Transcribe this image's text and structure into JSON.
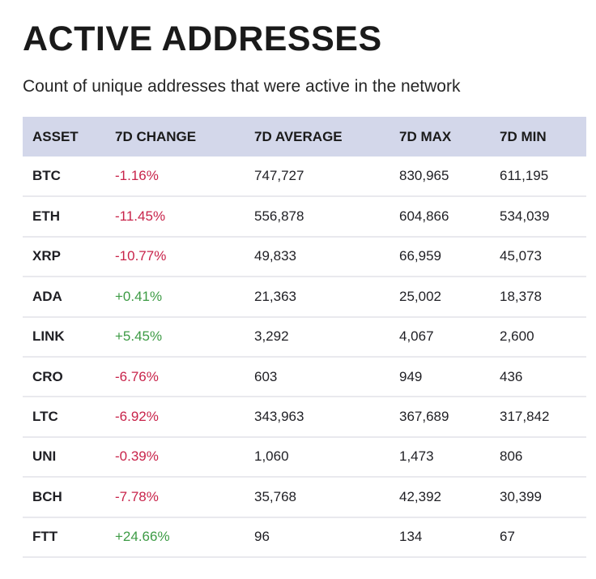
{
  "title": "ACTIVE ADDRESSES",
  "subtitle": "Count of unique addresses that were active in the network",
  "colors": {
    "header_background": "#d3d7ea",
    "negative_change": "#c8234a",
    "positive_change": "#3d9b45",
    "row_divider": "#e9e9ee"
  },
  "table": {
    "headers": [
      "ASSET",
      "7D CHANGE",
      "7D AVERAGE",
      "7D MAX",
      "7D MIN"
    ],
    "rows": [
      {
        "asset": "BTC",
        "change": "-1.16%",
        "direction": "negative",
        "average": "747,727",
        "max": "830,965",
        "min": "611,195"
      },
      {
        "asset": "ETH",
        "change": "-11.45%",
        "direction": "negative",
        "average": "556,878",
        "max": "604,866",
        "min": "534,039"
      },
      {
        "asset": "XRP",
        "change": "-10.77%",
        "direction": "negative",
        "average": "49,833",
        "max": "66,959",
        "min": "45,073"
      },
      {
        "asset": "ADA",
        "change": "+0.41%",
        "direction": "positive",
        "average": "21,363",
        "max": "25,002",
        "min": "18,378"
      },
      {
        "asset": "LINK",
        "change": "+5.45%",
        "direction": "positive",
        "average": "3,292",
        "max": "4,067",
        "min": "2,600"
      },
      {
        "asset": "CRO",
        "change": "-6.76%",
        "direction": "negative",
        "average": "603",
        "max": "949",
        "min": "436"
      },
      {
        "asset": "LTC",
        "change": "-6.92%",
        "direction": "negative",
        "average": "343,963",
        "max": "367,689",
        "min": "317,842"
      },
      {
        "asset": "UNI",
        "change": "-0.39%",
        "direction": "negative",
        "average": "1,060",
        "max": "1,473",
        "min": "806"
      },
      {
        "asset": "BCH",
        "change": "-7.78%",
        "direction": "negative",
        "average": "35,768",
        "max": "42,392",
        "min": "30,399"
      },
      {
        "asset": "FTT",
        "change": "+24.66%",
        "direction": "positive",
        "average": "96",
        "max": "134",
        "min": "67"
      }
    ]
  }
}
